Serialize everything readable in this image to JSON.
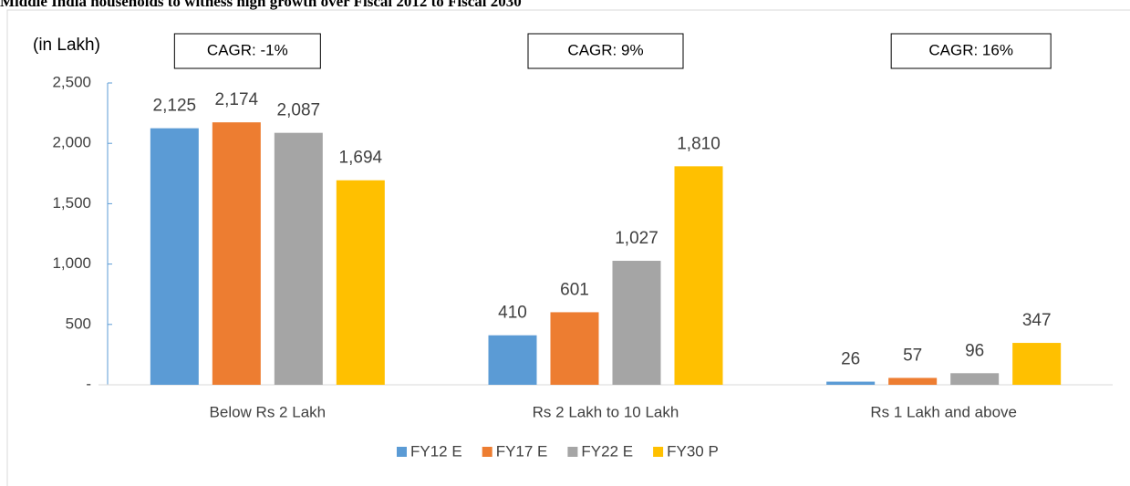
{
  "chart_data": {
    "type": "bar",
    "title": "Middle India households to witness high growth over Fiscal 2012 to Fiscal 2030",
    "y_axis_label": "(in Lakh)",
    "annotations": [
      "CAGR: -1%",
      "CAGR: 9%",
      "CAGR: 16%"
    ],
    "categories": [
      "Below Rs 2 Lakh",
      "Rs 2 Lakh to 10 Lakh",
      "Rs 1 Lakh and above"
    ],
    "series": [
      {
        "name": "FY12 E",
        "color": "#5b9bd5",
        "values": [
          2125,
          410,
          26
        ],
        "value_labels": [
          "2,125",
          "410",
          "26"
        ]
      },
      {
        "name": "FY17 E",
        "color": "#ed7d31",
        "values": [
          2174,
          601,
          57
        ],
        "value_labels": [
          "2,174",
          "601",
          "57"
        ]
      },
      {
        "name": "FY22 E",
        "color": "#a5a5a5",
        "values": [
          2087,
          1027,
          96
        ],
        "value_labels": [
          "2,087",
          "1,027",
          "96"
        ]
      },
      {
        "name": "FY30 P",
        "color": "#ffc000",
        "values": [
          1694,
          1810,
          347
        ],
        "value_labels": [
          "1,694",
          "1,810",
          "347"
        ]
      }
    ],
    "ylim": [
      0,
      2500
    ],
    "yticks": [
      {
        "value": 0,
        "label": "-"
      },
      500,
      {
        "value": 1000,
        "label": "1,000"
      },
      {
        "value": 1500,
        "label": "1,500"
      },
      {
        "value": 2000,
        "label": "2,000"
      },
      {
        "value": 2500,
        "label": "2,500"
      }
    ],
    "legend": "bottom"
  }
}
